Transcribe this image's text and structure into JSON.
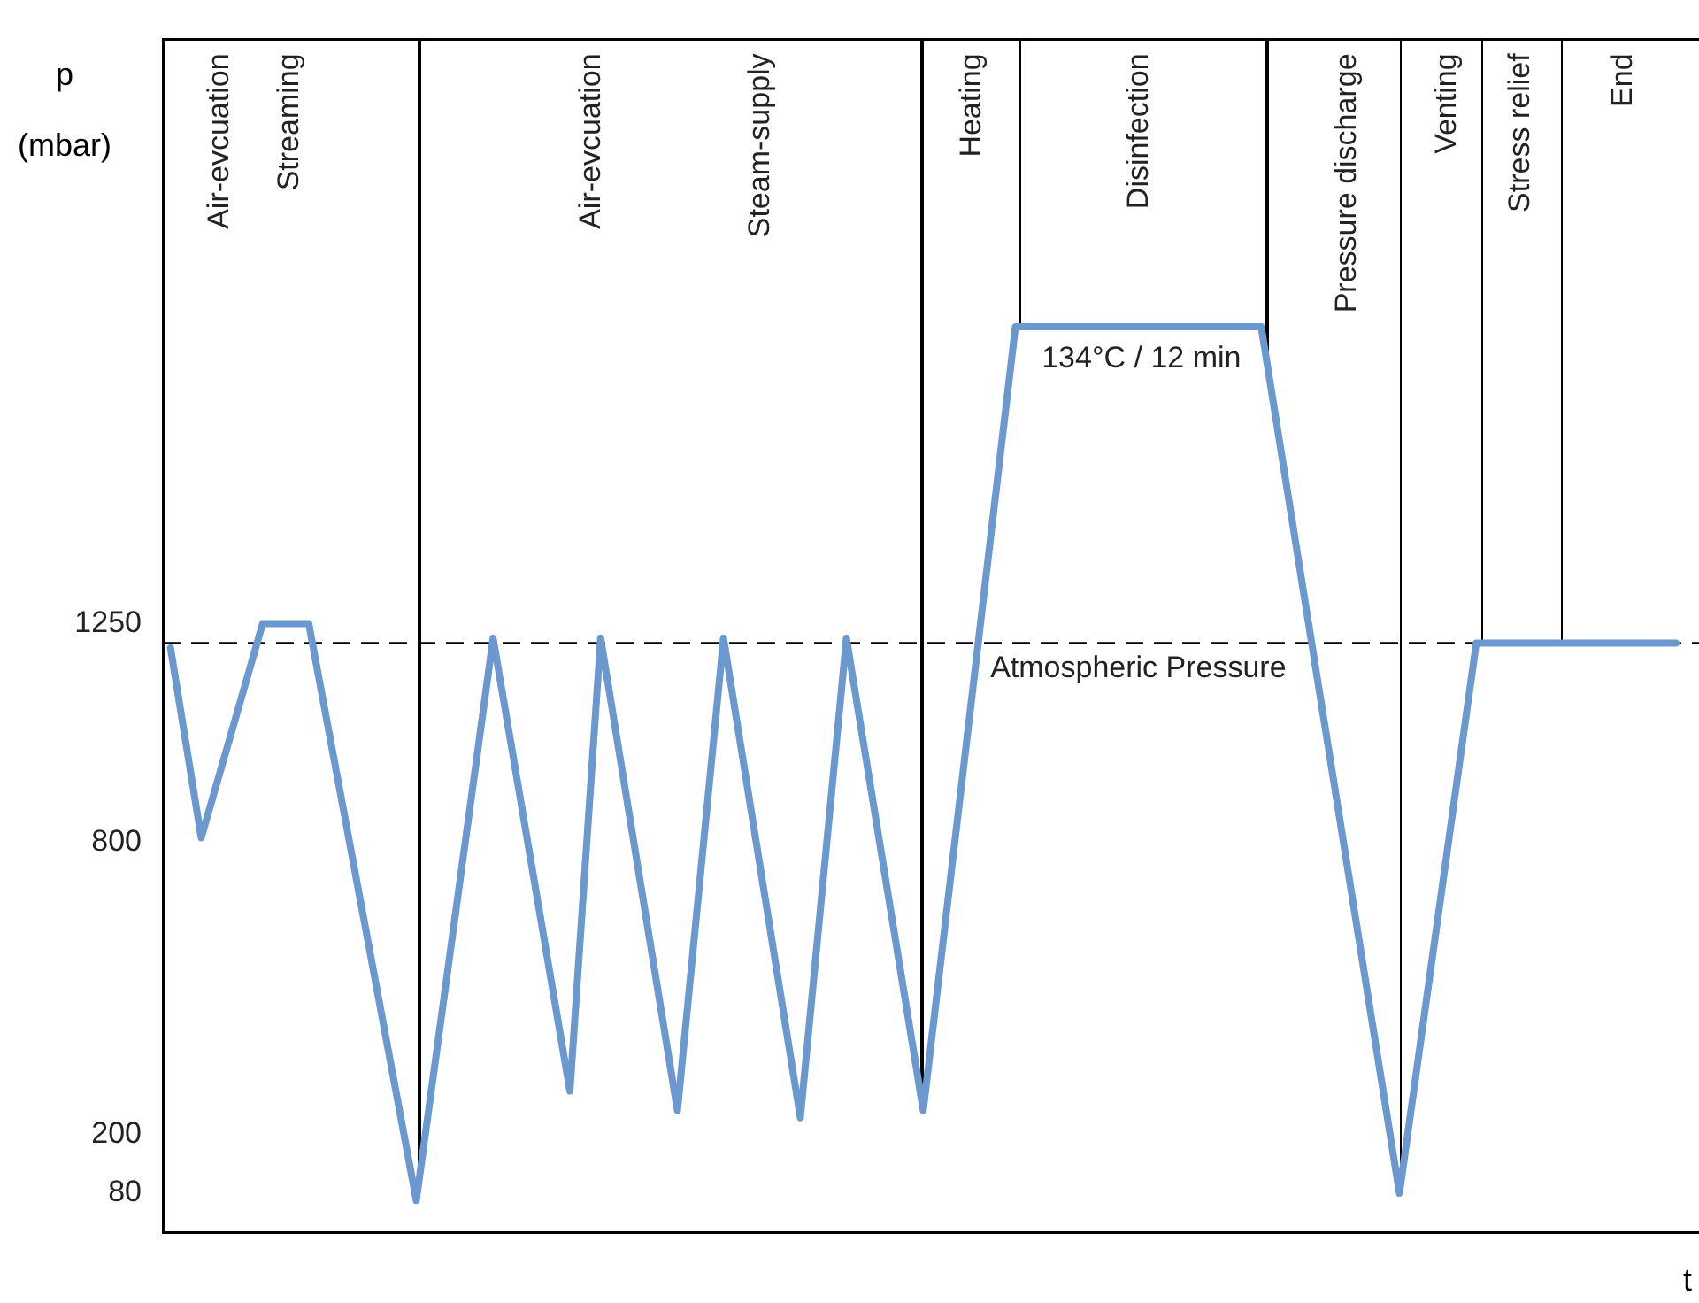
{
  "chart_data": {
    "type": "line",
    "ylabel": "p\n(mbar)",
    "xlabel": "t",
    "categories": [
      null,
      null,
      null,
      null,
      null,
      null,
      null,
      null,
      null,
      null,
      null,
      null,
      null,
      null,
      null,
      null,
      null,
      null,
      null,
      null,
      null,
      null,
      null,
      null,
      null,
      null,
      null,
      null,
      null,
      null,
      null,
      null,
      null,
      null,
      null,
      null,
      null,
      null,
      null,
      null,
      null,
      null,
      null,
      null,
      null,
      null,
      null,
      null,
      null,
      null,
      null,
      null,
      null,
      null,
      null,
      null,
      null,
      null,
      null,
      null,
      null,
      null,
      null,
      null,
      null,
      null,
      null,
      null,
      null,
      null,
      null,
      null,
      null,
      null,
      null,
      null,
      null,
      null,
      null,
      null,
      null,
      null,
      null,
      null,
      null,
      null,
      null,
      null,
      null,
      null,
      null,
      null,
      null,
      null,
      null,
      null,
      null,
      null,
      null,
      null
    ],
    "series": [
      {
        "color": "#6a98cf",
        "values": [
          1200,
          null,
          810,
          null,
          null,
          null,
          1250,
          null,
          null,
          1250,
          null,
          null,
          null,
          null,
          null,
          null,
          65,
          null,
          null,
          null,
          null,
          1220,
          null,
          null,
          null,
          null,
          290,
          null,
          1220,
          null,
          null,
          null,
          null,
          250,
          null,
          null,
          1220,
          null,
          null,
          null,
          null,
          235,
          null,
          null,
          1220,
          null,
          null,
          null,
          null,
          250,
          null,
          null,
          null,
          null,
          null,
          1860,
          null,
          null,
          null,
          null,
          null,
          null,
          null,
          null,
          null,
          null,
          null,
          null,
          null,
          null,
          null,
          1860,
          null,
          null,
          null,
          null,
          null,
          null,
          null,
          null,
          80,
          null,
          null,
          null,
          null,
          1210,
          null,
          null,
          null,
          null,
          null,
          null,
          null,
          null,
          null,
          null,
          null,
          null,
          1210,
          null
        ]
      }
    ],
    "ylim": [
      0,
      2450
    ],
    "yticks": [
      80,
      200,
      800,
      1250
    ],
    "tick_labels": "y",
    "grid": false,
    "legend": false,
    "marker": "none",
    "line_style": "solid",
    "ref_lines": [
      {
        "axis": "y",
        "value": 1210,
        "label": "Atmospheric Pressure",
        "line_style": "dashed",
        "color": "#000000"
      }
    ],
    "annotations": [
      "Air-evcuation",
      "Streaming",
      "Air-evcuation",
      "Steam-supply",
      "Heating",
      "Disinfection",
      "Pressure discharge",
      "Venting",
      "Stress relief",
      "End",
      "134°C / 12 min"
    ]
  }
}
